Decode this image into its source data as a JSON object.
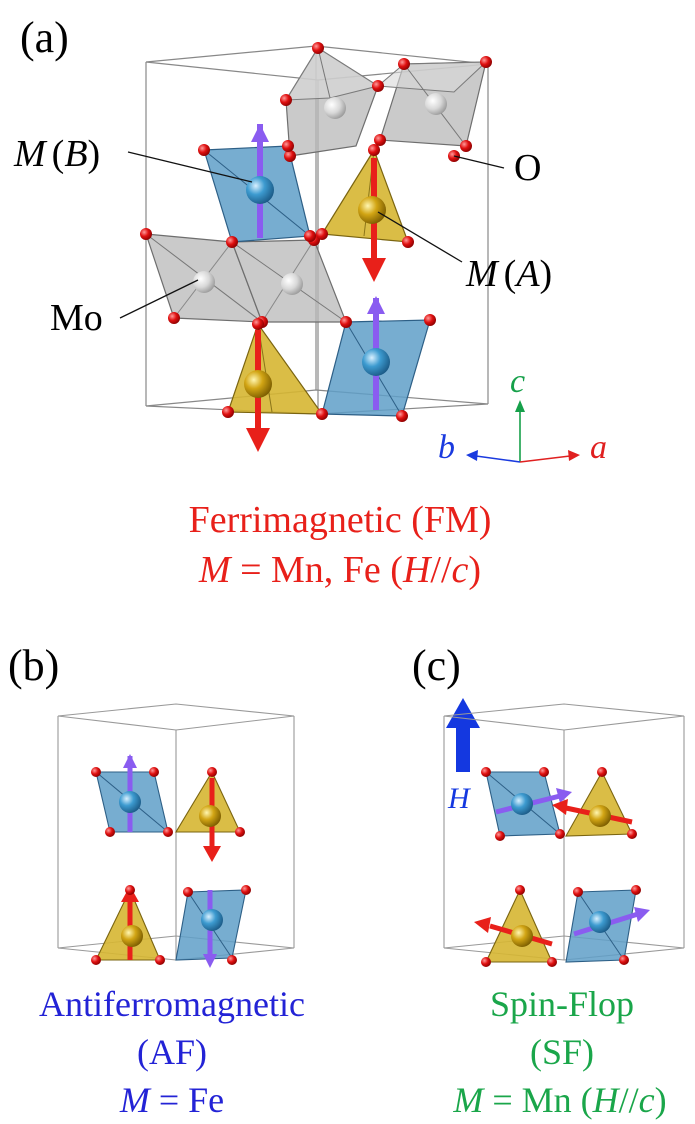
{
  "panels": {
    "a": {
      "label": "(a)",
      "labels": {
        "m_b": {
          "m": "M",
          "paren": "(",
          "site": "B",
          "close": ")"
        },
        "m_a": {
          "m": "M",
          "paren": "(",
          "site": "A",
          "close": ")"
        },
        "mo": "Mo",
        "o": "O"
      },
      "axes": {
        "a": "a",
        "b": "b",
        "c": "c"
      },
      "caption": {
        "line1": "Ferrimagnetic (FM)",
        "line2": {
          "m": "M",
          "eq": " = Mn, Fe (",
          "h": "H",
          "par": "//",
          "c": "c",
          "close": ")"
        }
      }
    },
    "b": {
      "label": "(b)",
      "caption": {
        "line1": "Antiferromagnetic",
        "line2": "(AF)",
        "line3": {
          "m": "M",
          "eq": " = Fe"
        }
      }
    },
    "c": {
      "label": "(c)",
      "field_label": "H",
      "caption": {
        "line1": "Spin-Flop",
        "line2": "(SF)",
        "line3": {
          "m": "M",
          "eq": " = Mn (",
          "h": "H",
          "par": "//",
          "c": "c",
          "close": ")"
        }
      }
    }
  },
  "colors": {
    "fm": "#e8201a",
    "af": "#2323d6",
    "sf": "#1aa64a",
    "b_site": "#5f9fc8",
    "a_site": "#d6b632",
    "mo_octa": "#b8b8b8",
    "oxygen": "#e01010",
    "spin_b": "#8a5cf0",
    "spin_a": "#e8201a",
    "axis_a": "#e02020",
    "axis_b": "#1a3adf",
    "axis_c": "#16a04a",
    "field_arrow": "#1438e0"
  }
}
